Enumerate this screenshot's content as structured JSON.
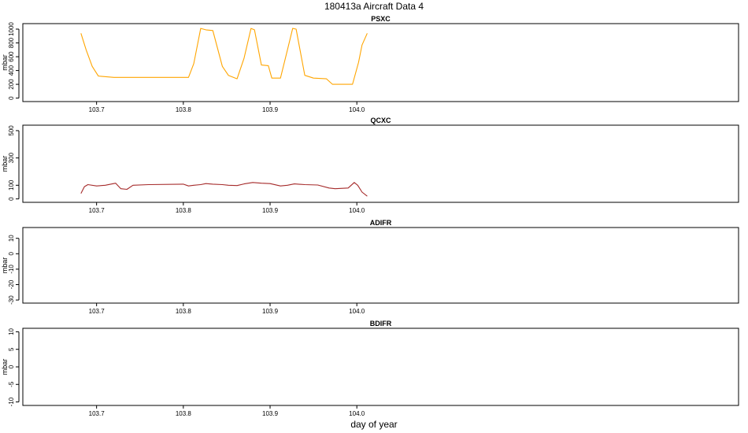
{
  "figure": {
    "title": "180413a    Aircraft Data 4",
    "xlabel": "day of year"
  },
  "chart_data": [
    {
      "type": "line",
      "title": "PSXC",
      "ylabel": "mbar",
      "xlim": [
        103.615,
        104.44
      ],
      "ylim": [
        -50,
        1080
      ],
      "xticks": [
        103.7,
        103.8,
        103.9,
        104.0
      ],
      "xtick_labels": [
        "103.7",
        "103.8",
        "103.9",
        "104.0"
      ],
      "yticks": [
        0,
        200,
        400,
        600,
        800,
        1000
      ],
      "ytick_labels": [
        "0",
        "200",
        "400",
        "600",
        "800",
        "1000"
      ],
      "series": [
        {
          "color": "#FFA500",
          "x": [
            103.682,
            103.688,
            103.695,
            103.702,
            103.72,
            103.76,
            103.806,
            103.812,
            103.82,
            103.826,
            103.834,
            103.845,
            103.852,
            103.862,
            103.87,
            103.878,
            103.882,
            103.89,
            103.898,
            103.902,
            103.912,
            103.92,
            103.926,
            103.93,
            103.94,
            103.95,
            103.965,
            103.972,
            103.995,
            104.002,
            104.006,
            104.012
          ],
          "y": [
            940,
            700,
            460,
            320,
            300,
            300,
            300,
            500,
            1010,
            990,
            980,
            460,
            330,
            280,
            580,
            1010,
            990,
            480,
            470,
            290,
            290,
            700,
            1010,
            1000,
            330,
            290,
            280,
            200,
            200,
            520,
            770,
            940
          ]
        }
      ]
    },
    {
      "type": "line",
      "title": "QCXC",
      "ylabel": "mbar",
      "xlim": [
        103.615,
        104.44
      ],
      "ylim": [
        -25,
        540
      ],
      "xticks": [
        103.7,
        103.8,
        103.9,
        104.0
      ],
      "xtick_labels": [
        "103.7",
        "103.8",
        "103.9",
        "104.0"
      ],
      "yticks": [
        0,
        100,
        300,
        500
      ],
      "ytick_labels": [
        "0",
        "100",
        "300",
        "500"
      ],
      "series": [
        {
          "color": "#A52A2A",
          "x": [
            103.682,
            103.686,
            103.69,
            103.7,
            103.71,
            103.722,
            103.728,
            103.735,
            103.742,
            103.76,
            103.8,
            103.806,
            103.812,
            103.82,
            103.826,
            103.834,
            103.845,
            103.852,
            103.862,
            103.87,
            103.88,
            103.89,
            103.9,
            103.912,
            103.92,
            103.928,
            103.94,
            103.955,
            103.968,
            103.975,
            103.99,
            103.997,
            104.001,
            104.006,
            104.012
          ],
          "y": [
            40,
            90,
            105,
            95,
            100,
            115,
            75,
            70,
            100,
            105,
            108,
            95,
            100,
            105,
            112,
            108,
            105,
            100,
            98,
            110,
            120,
            115,
            112,
            95,
            100,
            110,
            105,
            102,
            80,
            75,
            80,
            120,
            100,
            50,
            20
          ]
        }
      ]
    },
    {
      "type": "line",
      "title": "ADIFR",
      "ylabel": "mbar",
      "xlim": [
        103.615,
        104.44
      ],
      "ylim": [
        -32,
        17
      ],
      "xticks": [
        103.7,
        103.8,
        103.9,
        104.0
      ],
      "xtick_labels": [
        "103.7",
        "103.8",
        "103.9",
        "104.0"
      ],
      "yticks": [
        -30,
        -20,
        -10,
        0,
        10
      ],
      "ytick_labels": [
        "-30",
        "-20",
        "-10",
        "0",
        "10"
      ],
      "series": []
    },
    {
      "type": "line",
      "title": "BDIFR",
      "ylabel": "mbar",
      "xlim": [
        103.615,
        104.44
      ],
      "ylim": [
        -11,
        11
      ],
      "xticks": [
        103.7,
        103.8,
        103.9,
        104.0
      ],
      "xtick_labels": [
        "103.7",
        "103.8",
        "103.9",
        "104.0"
      ],
      "yticks": [
        -10,
        -5,
        0,
        5,
        10
      ],
      "ytick_labels": [
        "-10",
        "-5",
        "0",
        "5",
        "10"
      ],
      "series": []
    }
  ]
}
